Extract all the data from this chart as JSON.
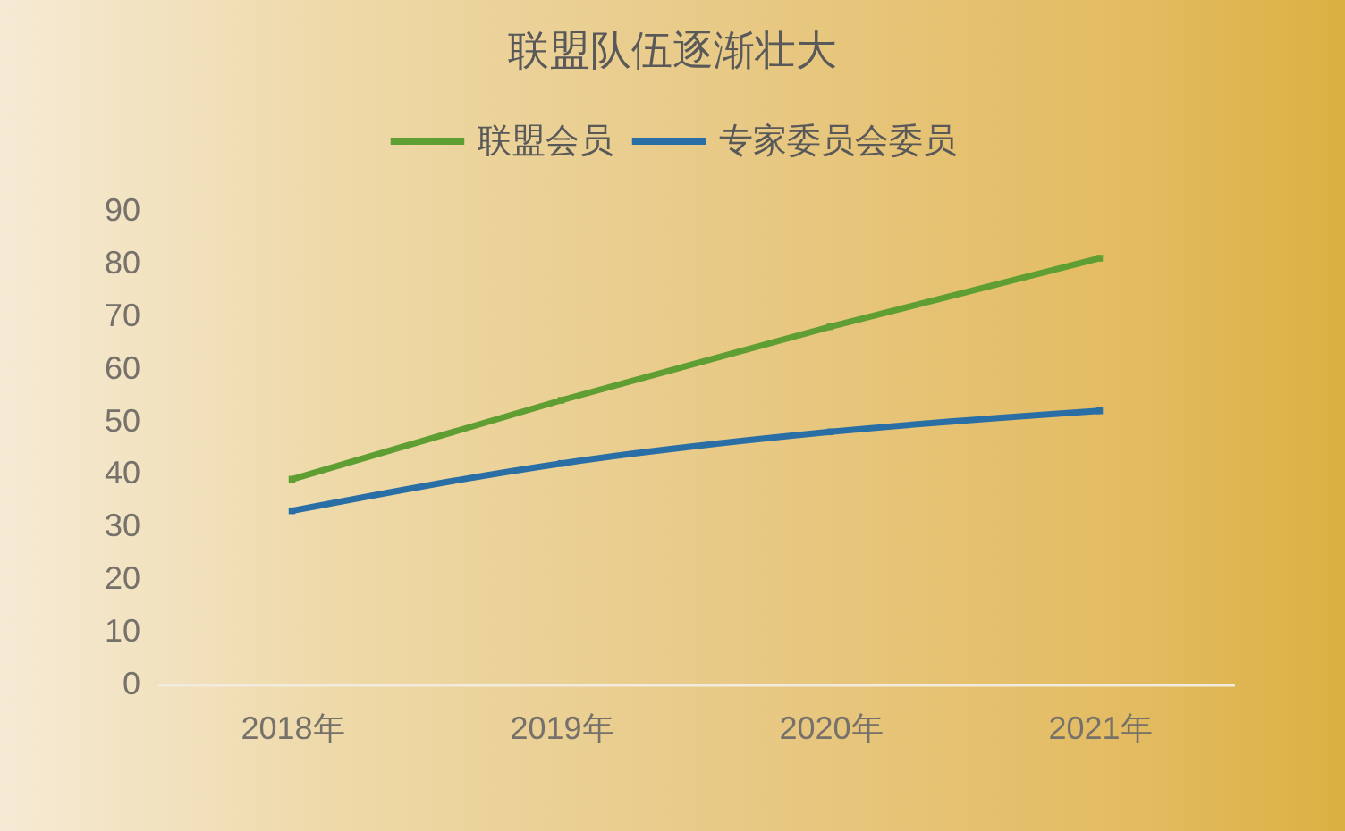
{
  "chart_data": {
    "type": "line",
    "title": "联盟队伍逐渐壮大",
    "categories": [
      "2018年",
      "2019年",
      "2020年",
      "2021年"
    ],
    "series": [
      {
        "name": "联盟会员",
        "color": "#5f9e32",
        "values": [
          39,
          54,
          68,
          81
        ]
      },
      {
        "name": "专家委员会委员",
        "color": "#2a6ea6",
        "values": [
          33,
          42,
          48,
          52
        ]
      }
    ],
    "ylim": [
      0,
      90
    ],
    "yticks": [
      0,
      10,
      20,
      30,
      40,
      50,
      60,
      70,
      80,
      90
    ],
    "grid": false,
    "legend": "top",
    "marker": "square",
    "line_style": "solid"
  }
}
